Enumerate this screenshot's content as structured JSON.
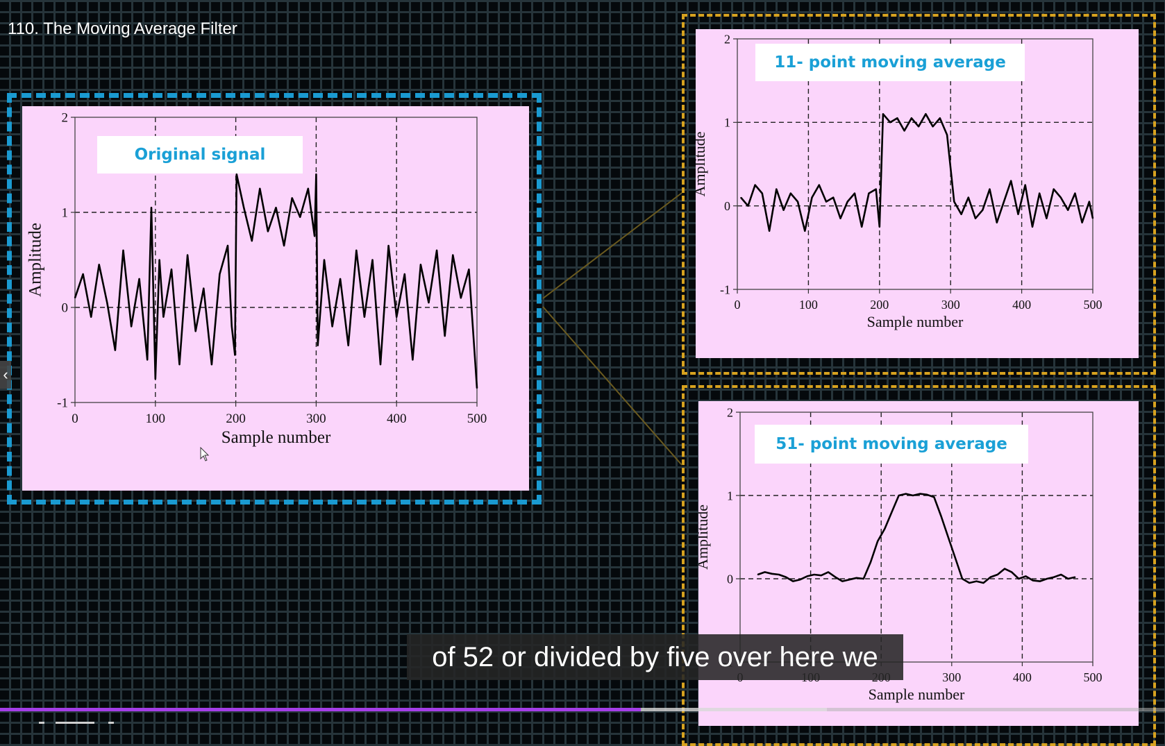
{
  "video": {
    "title": "110. The Moving Average Filter",
    "caption": "of 52 or divided by five over here we",
    "progress": 0.55,
    "buffered": 0.71
  },
  "colors": {
    "plot_background": "#fbd5fb",
    "blue_frame": "#1a9ad1",
    "yellow_frame": "#d7a21f",
    "label_text": "#1aa0d6",
    "progress_played": "#a43ee8",
    "trace": "#000000"
  },
  "icons": {
    "side_arrow": "chevron-left-icon",
    "cursor": "mouse-pointer-icon"
  },
  "chart_data": [
    {
      "type": "line",
      "title": "Original signal",
      "xlabel": "Sample number",
      "ylabel": "Amplitude",
      "xlim": [
        0,
        500
      ],
      "ylim": [
        -1,
        2
      ],
      "xticks": [
        0,
        100,
        200,
        300,
        400,
        500
      ],
      "yticks": [
        -1,
        0,
        1,
        2
      ],
      "grid": "dashed at every tick",
      "series": [
        {
          "x": [
            0,
            10,
            20,
            30,
            40,
            50,
            60,
            70,
            80,
            90,
            95,
            100,
            105,
            110,
            120,
            130,
            140,
            150,
            160,
            170,
            180,
            190,
            195,
            199,
            201,
            210,
            220,
            230,
            240,
            250,
            260,
            270,
            280,
            290,
            298,
            300,
            302,
            310,
            320,
            330,
            340,
            350,
            360,
            370,
            380,
            390,
            400,
            410,
            420,
            430,
            440,
            450,
            460,
            470,
            480,
            490,
            500
          ],
          "values": [
            0.1,
            0.35,
            -0.1,
            0.45,
            0.05,
            -0.45,
            0.6,
            -0.2,
            0.3,
            -0.55,
            1.05,
            -0.75,
            0.5,
            -0.1,
            0.4,
            -0.6,
            0.55,
            -0.25,
            0.2,
            -0.6,
            0.35,
            0.65,
            -0.2,
            -0.5,
            1.4,
            1.05,
            0.7,
            1.25,
            0.8,
            1.05,
            0.65,
            1.15,
            0.95,
            1.25,
            0.75,
            1.4,
            -0.4,
            0.5,
            -0.2,
            0.3,
            -0.4,
            0.6,
            -0.1,
            0.5,
            -0.6,
            0.65,
            -0.1,
            0.35,
            -0.55,
            0.45,
            0.05,
            0.6,
            -0.3,
            0.55,
            0.1,
            0.4,
            -0.85
          ]
        }
      ]
    },
    {
      "type": "line",
      "title": "11- point moving average",
      "xlabel": "Sample number",
      "ylabel": "Amplitude",
      "xlim": [
        0,
        500
      ],
      "ylim": [
        -1,
        2
      ],
      "xticks": [
        0,
        100,
        200,
        300,
        400,
        500
      ],
      "yticks": [
        -1,
        0,
        1,
        2
      ],
      "grid": "dashed at every tick",
      "series": [
        {
          "x": [
            5,
            15,
            25,
            35,
            45,
            55,
            65,
            75,
            85,
            95,
            105,
            115,
            125,
            135,
            145,
            155,
            165,
            175,
            185,
            195,
            200,
            205,
            215,
            225,
            235,
            245,
            255,
            265,
            275,
            285,
            295,
            305,
            315,
            325,
            335,
            345,
            355,
            365,
            375,
            385,
            395,
            405,
            415,
            425,
            435,
            445,
            455,
            465,
            475,
            485,
            495,
            500
          ],
          "values": [
            0.1,
            0.0,
            0.25,
            0.15,
            -0.3,
            0.2,
            -0.05,
            0.15,
            0.05,
            -0.3,
            0.1,
            0.25,
            0.05,
            0.1,
            -0.15,
            0.05,
            0.15,
            -0.25,
            0.15,
            0.2,
            -0.25,
            1.1,
            1.0,
            1.05,
            0.9,
            1.05,
            0.95,
            1.1,
            0.95,
            1.05,
            0.85,
            0.05,
            -0.1,
            0.1,
            -0.15,
            -0.05,
            0.2,
            -0.2,
            0.05,
            0.3,
            -0.1,
            0.25,
            -0.25,
            0.15,
            -0.15,
            0.2,
            0.1,
            -0.05,
            0.15,
            -0.2,
            0.05,
            -0.15
          ]
        }
      ]
    },
    {
      "type": "line",
      "title": "51- point moving average",
      "xlabel": "Sample number",
      "ylabel": "Amplitude",
      "xlim": [
        0,
        500
      ],
      "ylim": [
        -1,
        2
      ],
      "xticks": [
        0,
        100,
        200,
        300,
        400,
        500
      ],
      "yticks": [
        -1,
        2,
        1,
        0
      ],
      "grid": "dashed at every tick",
      "series": [
        {
          "x": [
            25,
            35,
            45,
            55,
            65,
            75,
            85,
            95,
            105,
            115,
            125,
            135,
            145,
            155,
            165,
            175,
            185,
            195,
            205,
            215,
            225,
            235,
            245,
            255,
            265,
            275,
            285,
            295,
            305,
            315,
            325,
            335,
            345,
            355,
            365,
            375,
            385,
            395,
            405,
            415,
            425,
            435,
            445,
            455,
            465,
            475
          ],
          "values": [
            0.05,
            0.08,
            0.06,
            0.05,
            0.02,
            -0.03,
            -0.01,
            0.03,
            0.05,
            0.04,
            0.08,
            0.02,
            -0.03,
            -0.01,
            0.01,
            0.0,
            0.2,
            0.45,
            0.6,
            0.8,
            1.0,
            1.02,
            1.0,
            1.02,
            1.01,
            0.98,
            0.75,
            0.5,
            0.25,
            0.0,
            -0.05,
            -0.03,
            -0.05,
            0.02,
            0.05,
            0.12,
            0.08,
            0.0,
            0.03,
            -0.02,
            -0.03,
            0.0,
            0.02,
            0.05,
            0.0,
            0.02
          ]
        }
      ]
    }
  ]
}
